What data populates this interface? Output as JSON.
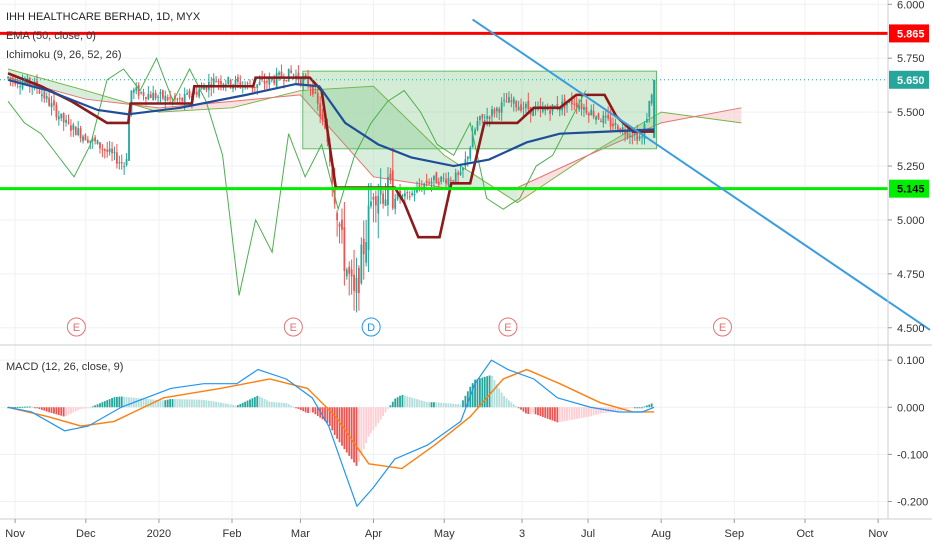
{
  "header": {
    "title": "IHH HEALTHCARE BERHAD, 1D, MYX",
    "ema_label": "EMA (50, close, 0)",
    "ichimoku_label": "Ichimoku (9, 26, 52, 26)",
    "macd_label": "MACD (12, 26, close, 9)"
  },
  "colors": {
    "grid": "#eef1f5",
    "up": "#26a69a",
    "down": "#ef5350",
    "ema": "#1f4e99",
    "kijun": "#8b1a1a",
    "chikou": "#4caf50",
    "cloud_bull": "#b7e0bf",
    "cloud_bear": "#f6c9c9",
    "resistance": "#ff0000",
    "support": "#00ee00",
    "trendline": "#3a9de0",
    "box": "#66bb6a",
    "macd_line": "#2196f3",
    "signal_line": "#ff7f0e",
    "hist_up": "#26a69a",
    "hist_up_light": "#b2dfdb",
    "hist_down": "#ef5350",
    "hist_down_light": "#ffcdd2",
    "last_price": "#26a69a"
  },
  "chart_data": [
    {
      "type": "candlestick",
      "title": "IHH HEALTHCARE BERHAD, 1D, MYX",
      "ylim": [
        4.42,
        6.02
      ],
      "y_ticks": [
        "6.000",
        "5.750",
        "5.500",
        "5.250",
        "5.000",
        "4.750",
        "4.500"
      ],
      "x_ticks": [
        "Nov",
        "Dec",
        "2020",
        "Feb",
        "Mar",
        "Apr",
        "May",
        "3",
        "Jul",
        "Aug",
        "Sep",
        "Oct",
        "Nov"
      ],
      "price_labels": [
        {
          "name": "resistance",
          "value": 5.865,
          "text": "5.865"
        },
        {
          "name": "last-price",
          "value": 5.65,
          "text": "5.650"
        },
        {
          "name": "support",
          "value": 5.145,
          "text": "5.145"
        }
      ],
      "events": [
        {
          "letter": "E",
          "kind": "earnings",
          "date": "2019-11-27"
        },
        {
          "letter": "E",
          "kind": "earnings",
          "date": "2020-02-27"
        },
        {
          "letter": "D",
          "kind": "dividend",
          "date": "2020-03-31"
        },
        {
          "letter": "E",
          "kind": "earnings",
          "date": "2020-05-28"
        },
        {
          "letter": "E",
          "kind": "earnings",
          "date": "2020-08-27"
        }
      ],
      "consolidation_box": {
        "from_date": "2020-03-02",
        "to_date": "2020-07-30",
        "high": 5.69,
        "low": 5.33
      },
      "trendline": {
        "from": {
          "date": "2020-05-13",
          "price": 5.93
        },
        "to": {
          "date": "2020-11-23",
          "price": 4.49
        }
      },
      "series": {
        "ema": [
          {
            "date": "2019-10-29",
            "value": 5.65
          },
          {
            "date": "2019-11-15",
            "value": 5.6
          },
          {
            "date": "2019-12-06",
            "value": 5.51
          },
          {
            "date": "2019-12-19",
            "value": 5.49
          },
          {
            "date": "2020-01-10",
            "value": 5.52
          },
          {
            "date": "2020-02-07",
            "value": 5.58
          },
          {
            "date": "2020-02-28",
            "value": 5.63
          },
          {
            "date": "2020-03-09",
            "value": 5.62
          },
          {
            "date": "2020-03-20",
            "value": 5.45
          },
          {
            "date": "2020-04-03",
            "value": 5.35
          },
          {
            "date": "2020-04-17",
            "value": 5.29
          },
          {
            "date": "2020-05-05",
            "value": 5.25
          },
          {
            "date": "2020-05-20",
            "value": 5.28
          },
          {
            "date": "2020-06-05",
            "value": 5.36
          },
          {
            "date": "2020-06-19",
            "value": 5.4
          },
          {
            "date": "2020-07-10",
            "value": 5.41
          },
          {
            "date": "2020-07-29",
            "value": 5.42
          }
        ],
        "kijun": [
          {
            "date": "2019-10-29",
            "value": 5.68
          },
          {
            "date": "2019-11-12",
            "value": 5.62
          },
          {
            "date": "2019-11-25",
            "value": 5.55
          },
          {
            "date": "2019-12-10",
            "value": 5.45
          },
          {
            "date": "2019-12-19",
            "value": 5.45
          },
          {
            "date": "2019-12-20",
            "value": 5.54
          },
          {
            "date": "2020-01-15",
            "value": 5.54
          },
          {
            "date": "2020-01-16",
            "value": 5.62
          },
          {
            "date": "2020-02-10",
            "value": 5.62
          },
          {
            "date": "2020-02-11",
            "value": 5.66
          },
          {
            "date": "2020-03-05",
            "value": 5.66
          },
          {
            "date": "2020-03-10",
            "value": 5.6
          },
          {
            "date": "2020-03-16",
            "value": 5.15
          },
          {
            "date": "2020-04-10",
            "value": 5.15
          },
          {
            "date": "2020-04-14",
            "value": 5.08
          },
          {
            "date": "2020-04-20",
            "value": 4.92
          },
          {
            "date": "2020-04-29",
            "value": 4.92
          },
          {
            "date": "2020-05-04",
            "value": 5.17
          },
          {
            "date": "2020-05-12",
            "value": 5.17
          },
          {
            "date": "2020-05-18",
            "value": 5.45
          },
          {
            "date": "2020-06-01",
            "value": 5.45
          },
          {
            "date": "2020-06-08",
            "value": 5.52
          },
          {
            "date": "2020-06-19",
            "value": 5.52
          },
          {
            "date": "2020-06-26",
            "value": 5.58
          },
          {
            "date": "2020-07-08",
            "value": 5.58
          },
          {
            "date": "2020-07-13",
            "value": 5.48
          },
          {
            "date": "2020-07-20",
            "value": 5.41
          },
          {
            "date": "2020-07-29",
            "value": 5.41
          }
        ],
        "cloud_a": [
          {
            "date": "2019-10-29",
            "value": 5.7
          },
          {
            "date": "2019-12-01",
            "value": 5.6
          },
          {
            "date": "2020-01-01",
            "value": 5.5
          },
          {
            "date": "2020-02-01",
            "value": 5.52
          },
          {
            "date": "2020-03-01",
            "value": 5.6
          },
          {
            "date": "2020-04-01",
            "value": 5.62
          },
          {
            "date": "2020-05-01",
            "value": 5.3
          },
          {
            "date": "2020-06-01",
            "value": 5.08
          },
          {
            "date": "2020-07-01",
            "value": 5.3
          },
          {
            "date": "2020-08-01",
            "value": 5.5
          },
          {
            "date": "2020-09-04",
            "value": 5.45
          }
        ],
        "cloud_b": [
          {
            "date": "2019-10-29",
            "value": 5.66
          },
          {
            "date": "2019-12-01",
            "value": 5.56
          },
          {
            "date": "2020-01-01",
            "value": 5.52
          },
          {
            "date": "2020-02-01",
            "value": 5.55
          },
          {
            "date": "2020-03-01",
            "value": 5.58
          },
          {
            "date": "2020-04-01",
            "value": 5.2
          },
          {
            "date": "2020-05-01",
            "value": 5.15
          },
          {
            "date": "2020-06-01",
            "value": 5.15
          },
          {
            "date": "2020-07-01",
            "value": 5.3
          },
          {
            "date": "2020-08-01",
            "value": 5.45
          },
          {
            "date": "2020-09-04",
            "value": 5.52
          }
        ],
        "chikou": [
          {
            "date": "2019-10-29",
            "value": 5.55
          },
          {
            "date": "2019-11-05",
            "value": 5.45
          },
          {
            "date": "2019-11-12",
            "value": 5.4
          },
          {
            "date": "2019-11-19",
            "value": 5.3
          },
          {
            "date": "2019-11-26",
            "value": 5.2
          },
          {
            "date": "2019-12-03",
            "value": 5.35
          },
          {
            "date": "2019-12-10",
            "value": 5.65
          },
          {
            "date": "2019-12-17",
            "value": 5.7
          },
          {
            "date": "2019-12-24",
            "value": 5.6
          },
          {
            "date": "2019-12-31",
            "value": 5.75
          },
          {
            "date": "2020-01-07",
            "value": 5.55
          },
          {
            "date": "2020-01-14",
            "value": 5.7
          },
          {
            "date": "2020-01-21",
            "value": 5.55
          },
          {
            "date": "2020-01-28",
            "value": 5.3
          },
          {
            "date": "2020-02-04",
            "value": 4.65
          },
          {
            "date": "2020-02-11",
            "value": 5.0
          },
          {
            "date": "2020-02-18",
            "value": 4.85
          },
          {
            "date": "2020-02-25",
            "value": 5.4
          },
          {
            "date": "2020-03-03",
            "value": 5.2
          },
          {
            "date": "2020-03-10",
            "value": 5.35
          },
          {
            "date": "2020-03-17",
            "value": 5.05
          },
          {
            "date": "2020-03-24",
            "value": 5.3
          },
          {
            "date": "2020-03-31",
            "value": 5.45
          },
          {
            "date": "2020-04-07",
            "value": 5.55
          },
          {
            "date": "2020-04-14",
            "value": 5.6
          },
          {
            "date": "2020-04-21",
            "value": 5.5
          },
          {
            "date": "2020-04-28",
            "value": 5.35
          },
          {
            "date": "2020-05-05",
            "value": 5.3
          },
          {
            "date": "2020-05-12",
            "value": 5.45
          },
          {
            "date": "2020-05-19",
            "value": 5.1
          },
          {
            "date": "2020-05-26",
            "value": 5.05
          },
          {
            "date": "2020-06-02",
            "value": 5.1
          },
          {
            "date": "2020-06-09",
            "value": 5.25
          },
          {
            "date": "2020-06-16",
            "value": 5.3
          },
          {
            "date": "2020-06-23",
            "value": 5.45
          },
          {
            "date": "2020-06-30",
            "value": 5.6
          }
        ]
      }
    },
    {
      "type": "macd",
      "title": "MACD (12, 26, close, 9)",
      "ylim": [
        -0.235,
        0.13
      ],
      "y_ticks": [
        "0.100",
        "0.000",
        "-0.100",
        "-0.200"
      ],
      "series": [
        {
          "name": "macd",
          "points": [
            {
              "date": "2019-10-29",
              "value": 0.0
            },
            {
              "date": "2019-11-08",
              "value": -0.01
            },
            {
              "date": "2019-11-22",
              "value": -0.05
            },
            {
              "date": "2019-12-02",
              "value": -0.04
            },
            {
              "date": "2019-12-16",
              "value": 0.0
            },
            {
              "date": "2020-01-06",
              "value": 0.04
            },
            {
              "date": "2020-01-20",
              "value": 0.05
            },
            {
              "date": "2020-02-03",
              "value": 0.05
            },
            {
              "date": "2020-02-12",
              "value": 0.08
            },
            {
              "date": "2020-02-24",
              "value": 0.06
            },
            {
              "date": "2020-03-06",
              "value": 0.02
            },
            {
              "date": "2020-03-13",
              "value": -0.04
            },
            {
              "date": "2020-03-20",
              "value": -0.14
            },
            {
              "date": "2020-03-25",
              "value": -0.21
            },
            {
              "date": "2020-04-01",
              "value": -0.17
            },
            {
              "date": "2020-04-10",
              "value": -0.11
            },
            {
              "date": "2020-04-24",
              "value": -0.08
            },
            {
              "date": "2020-05-08",
              "value": -0.03
            },
            {
              "date": "2020-05-14",
              "value": 0.05
            },
            {
              "date": "2020-05-21",
              "value": 0.1
            },
            {
              "date": "2020-05-28",
              "value": 0.08
            },
            {
              "date": "2020-06-08",
              "value": 0.06
            },
            {
              "date": "2020-06-18",
              "value": 0.02
            },
            {
              "date": "2020-07-02",
              "value": 0.0
            },
            {
              "date": "2020-07-14",
              "value": -0.01
            },
            {
              "date": "2020-07-24",
              "value": -0.01
            },
            {
              "date": "2020-07-29",
              "value": 0.0
            }
          ]
        },
        {
          "name": "signal",
          "points": [
            {
              "date": "2019-10-29",
              "value": 0.0
            },
            {
              "date": "2019-11-15",
              "value": -0.02
            },
            {
              "date": "2019-11-29",
              "value": -0.04
            },
            {
              "date": "2019-12-13",
              "value": -0.03
            },
            {
              "date": "2020-01-03",
              "value": 0.02
            },
            {
              "date": "2020-01-27",
              "value": 0.04
            },
            {
              "date": "2020-02-17",
              "value": 0.06
            },
            {
              "date": "2020-03-04",
              "value": 0.04
            },
            {
              "date": "2020-03-16",
              "value": -0.02
            },
            {
              "date": "2020-03-30",
              "value": -0.12
            },
            {
              "date": "2020-04-13",
              "value": -0.13
            },
            {
              "date": "2020-04-27",
              "value": -0.08
            },
            {
              "date": "2020-05-12",
              "value": -0.02
            },
            {
              "date": "2020-05-26",
              "value": 0.06
            },
            {
              "date": "2020-06-05",
              "value": 0.08
            },
            {
              "date": "2020-06-19",
              "value": 0.05
            },
            {
              "date": "2020-07-06",
              "value": 0.01
            },
            {
              "date": "2020-07-20",
              "value": -0.01
            },
            {
              "date": "2020-07-29",
              "value": -0.01
            }
          ]
        }
      ]
    }
  ]
}
